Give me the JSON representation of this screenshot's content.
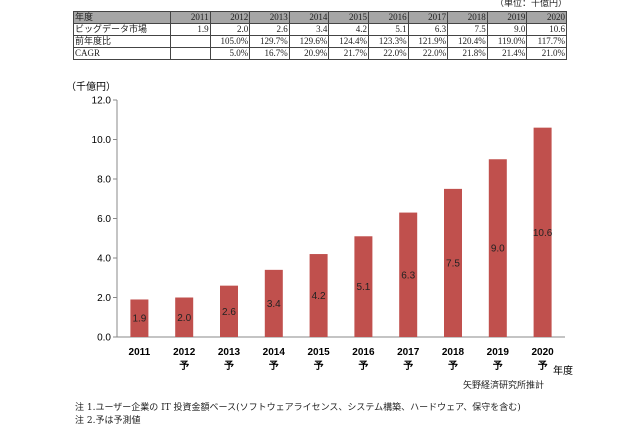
{
  "table": {
    "unit": "（単位：千億円）",
    "header": [
      "年度",
      "2011",
      "2012",
      "2013",
      "2014",
      "2015",
      "2016",
      "2017",
      "2018",
      "2019",
      "2020"
    ],
    "rows": [
      [
        "ビッグデータ市場",
        "1.9",
        "2.0",
        "2.6",
        "3.4",
        "4.2",
        "5.1",
        "6.3",
        "7.5",
        "9.0",
        "10.6"
      ],
      [
        "前年度比",
        "",
        "105.0%",
        "129.7%",
        "129.6%",
        "124.4%",
        "123.3%",
        "121.9%",
        "120.4%",
        "119.0%",
        "117.7%"
      ],
      [
        "CAGR",
        "",
        "5.0%",
        "16.7%",
        "20.9%",
        "21.7%",
        "22.0%",
        "22.0%",
        "21.8%",
        "21.4%",
        "21.0%"
      ]
    ]
  },
  "chart_data": {
    "type": "bar",
    "categories": [
      "2011",
      "2012",
      "2013",
      "2014",
      "2015",
      "2016",
      "2017",
      "2018",
      "2019",
      "2020"
    ],
    "category_sublabels": [
      "",
      "予",
      "予",
      "予",
      "予",
      "予",
      "予",
      "予",
      "予",
      "予"
    ],
    "values": [
      1.9,
      2.0,
      2.6,
      3.4,
      4.2,
      5.1,
      6.3,
      7.5,
      9.0,
      10.6
    ],
    "data_labels": [
      "1.9",
      "2.0",
      "2.6",
      "3.4",
      "4.2",
      "5.1",
      "6.3",
      "7.5",
      "9.0",
      "10.6"
    ],
    "ylabel": "（千億円）",
    "xlabel": "年度",
    "ylim": [
      0,
      12
    ],
    "yticks": [
      "0.0",
      "2.0",
      "4.0",
      "6.0",
      "8.0",
      "10.0",
      "12.0"
    ],
    "grid": false,
    "bar_color": "#c0504d"
  },
  "source": "矢野経済研究所推計",
  "notes": [
    "注 1.ユーザー企業の IT 投資金額ベース(ソフトウェアライセンス、システム構築、ハードウェア、保守を含む)",
    "注 2.予は予測値"
  ]
}
